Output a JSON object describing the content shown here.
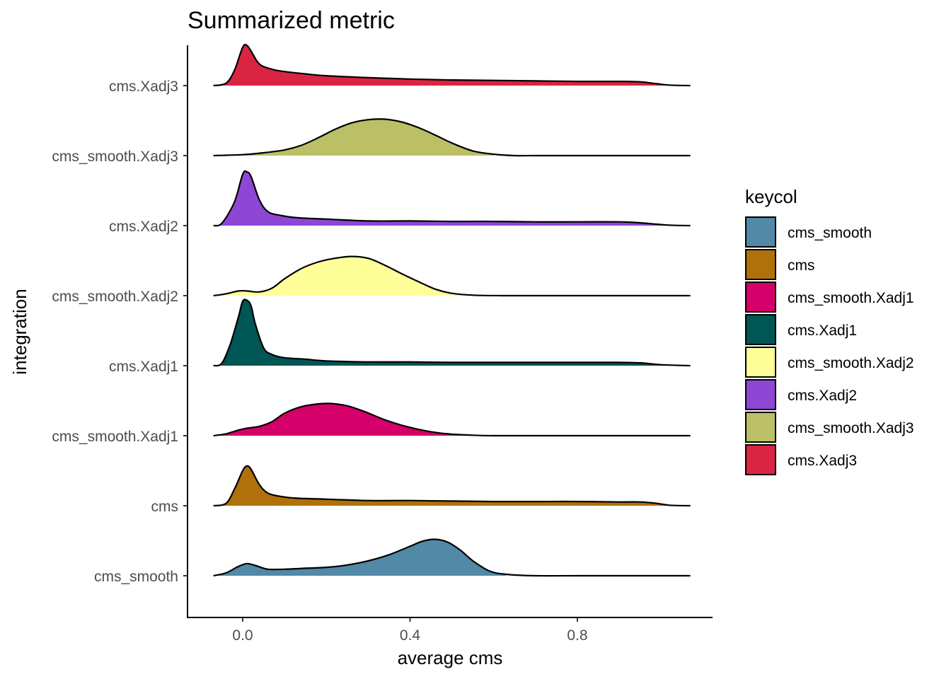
{
  "chart_data": {
    "type": "ridgeline",
    "title": "Summarized metric",
    "xlabel": "average cms",
    "ylabel": "integration",
    "xlim": [
      -0.13,
      1.12
    ],
    "x_ticks": [
      0.0,
      0.4,
      0.8
    ],
    "x_tick_labels": [
      "0.0",
      "0.4",
      "0.8"
    ],
    "legend": {
      "title": "keycol",
      "position": "right",
      "entries": [
        {
          "label": "cms_smooth",
          "color": "#5289a6"
        },
        {
          "label": "cms",
          "color": "#b0700b"
        },
        {
          "label": "cms_smooth.Xadj1",
          "color": "#d5006a"
        },
        {
          "label": "cms.Xadj1",
          "color": "#005655"
        },
        {
          "label": "cms_smooth.Xadj2",
          "color": "#ffff99"
        },
        {
          "label": "cms.Xadj2",
          "color": "#8e47d4"
        },
        {
          "label": "cms_smooth.Xadj3",
          "color": "#bbbf66"
        },
        {
          "label": "cms.Xadj3",
          "color": "#d92541"
        }
      ]
    },
    "series": [
      {
        "name": "cms_smooth",
        "color": "#5289a6",
        "x": [
          -0.07,
          -0.04,
          -0.01,
          0.01,
          0.03,
          0.06,
          0.1,
          0.15,
          0.2,
          0.25,
          0.3,
          0.35,
          0.4,
          0.43,
          0.46,
          0.49,
          0.52,
          0.55,
          0.59,
          0.63,
          0.7,
          0.8,
          0.9,
          1.0,
          1.07
        ],
        "y": [
          0.0,
          0.06,
          0.2,
          0.26,
          0.22,
          0.14,
          0.14,
          0.16,
          0.18,
          0.23,
          0.32,
          0.45,
          0.63,
          0.74,
          0.78,
          0.72,
          0.55,
          0.32,
          0.1,
          0.03,
          0.0,
          0.0,
          0.0,
          0.0,
          0.0
        ],
        "fill_xmax": 0.63
      },
      {
        "name": "cms",
        "color": "#b0700b",
        "x": [
          -0.07,
          -0.04,
          -0.02,
          0.0,
          0.01,
          0.02,
          0.04,
          0.06,
          0.09,
          0.13,
          0.2,
          0.3,
          0.4,
          0.5,
          0.6,
          0.7,
          0.8,
          0.9,
          0.95,
          0.99,
          1.02,
          1.07
        ],
        "y": [
          0.0,
          0.05,
          0.35,
          0.75,
          0.85,
          0.78,
          0.45,
          0.27,
          0.2,
          0.16,
          0.14,
          0.11,
          0.11,
          0.1,
          0.09,
          0.09,
          0.09,
          0.08,
          0.08,
          0.05,
          0.01,
          0.0
        ],
        "fill_xmax": 1.02
      },
      {
        "name": "cms_smooth.Xadj1",
        "color": "#d5006a",
        "x": [
          -0.07,
          -0.04,
          -0.01,
          0.01,
          0.04,
          0.07,
          0.1,
          0.14,
          0.18,
          0.21,
          0.25,
          0.29,
          0.34,
          0.39,
          0.44,
          0.49,
          0.55,
          0.6,
          0.7,
          0.8,
          0.9,
          1.0,
          1.07
        ],
        "y": [
          0.0,
          0.04,
          0.12,
          0.16,
          0.2,
          0.3,
          0.48,
          0.62,
          0.68,
          0.69,
          0.64,
          0.52,
          0.34,
          0.2,
          0.1,
          0.04,
          0.01,
          0.0,
          0.0,
          0.0,
          0.0,
          0.0,
          0.0
        ],
        "fill_xmax": 0.55
      },
      {
        "name": "cms.Xadj1",
        "color": "#005655",
        "x": [
          -0.07,
          -0.05,
          -0.03,
          -0.01,
          0.0,
          0.01,
          0.02,
          0.03,
          0.05,
          0.07,
          0.1,
          0.15,
          0.2,
          0.3,
          0.4,
          0.5,
          0.6,
          0.7,
          0.8,
          0.9,
          0.95,
          1.0,
          1.07
        ],
        "y": [
          0.0,
          0.05,
          0.45,
          1.05,
          1.38,
          1.4,
          1.28,
          0.9,
          0.38,
          0.24,
          0.17,
          0.14,
          0.1,
          0.08,
          0.08,
          0.07,
          0.07,
          0.07,
          0.07,
          0.07,
          0.06,
          0.02,
          0.0
        ],
        "fill_xmax": 1.02
      },
      {
        "name": "cms_smooth.Xadj2",
        "color": "#ffff99",
        "x": [
          -0.07,
          -0.04,
          -0.01,
          0.01,
          0.04,
          0.07,
          0.1,
          0.14,
          0.18,
          0.22,
          0.26,
          0.3,
          0.34,
          0.38,
          0.42,
          0.46,
          0.5,
          0.55,
          0.62,
          0.7,
          0.8,
          0.9,
          1.0,
          1.07
        ],
        "y": [
          0.0,
          0.04,
          0.1,
          0.1,
          0.08,
          0.16,
          0.36,
          0.58,
          0.72,
          0.8,
          0.84,
          0.8,
          0.65,
          0.47,
          0.3,
          0.14,
          0.05,
          0.01,
          0.0,
          0.0,
          0.0,
          0.0,
          0.0,
          0.0
        ],
        "fill_xmax": 0.52
      },
      {
        "name": "cms.Xadj2",
        "color": "#8e47d4",
        "x": [
          -0.07,
          -0.05,
          -0.02,
          0.0,
          0.01,
          0.02,
          0.04,
          0.06,
          0.09,
          0.13,
          0.2,
          0.3,
          0.4,
          0.5,
          0.6,
          0.7,
          0.8,
          0.9,
          0.95,
          0.99,
          1.02,
          1.07
        ],
        "y": [
          0.0,
          0.05,
          0.5,
          1.1,
          1.15,
          1.05,
          0.55,
          0.3,
          0.22,
          0.17,
          0.14,
          0.1,
          0.1,
          0.09,
          0.09,
          0.08,
          0.08,
          0.08,
          0.06,
          0.03,
          0.01,
          0.0
        ],
        "fill_xmax": 1.02
      },
      {
        "name": "cms_smooth.Xadj3",
        "color": "#bbbf66",
        "x": [
          -0.07,
          0.0,
          0.05,
          0.1,
          0.14,
          0.18,
          0.22,
          0.26,
          0.3,
          0.34,
          0.38,
          0.42,
          0.46,
          0.5,
          0.55,
          0.6,
          0.65,
          0.7,
          0.8,
          0.9,
          1.0,
          1.07
        ],
        "y": [
          0.0,
          0.02,
          0.06,
          0.12,
          0.22,
          0.38,
          0.56,
          0.7,
          0.77,
          0.78,
          0.72,
          0.6,
          0.44,
          0.27,
          0.1,
          0.03,
          0.0,
          0.0,
          0.0,
          0.0,
          0.0,
          0.0
        ],
        "fill_xmax": 0.6
      },
      {
        "name": "cms.Xadj3",
        "color": "#d92541",
        "x": [
          -0.07,
          -0.04,
          -0.02,
          0.0,
          0.01,
          0.02,
          0.04,
          0.07,
          0.1,
          0.15,
          0.2,
          0.3,
          0.4,
          0.5,
          0.6,
          0.7,
          0.8,
          0.9,
          0.95,
          0.99,
          1.02,
          1.07
        ],
        "y": [
          0.0,
          0.05,
          0.32,
          0.82,
          0.86,
          0.74,
          0.46,
          0.35,
          0.3,
          0.25,
          0.21,
          0.17,
          0.14,
          0.12,
          0.11,
          0.1,
          0.09,
          0.09,
          0.08,
          0.04,
          0.01,
          0.0
        ],
        "fill_xmax": 1.02
      }
    ]
  }
}
